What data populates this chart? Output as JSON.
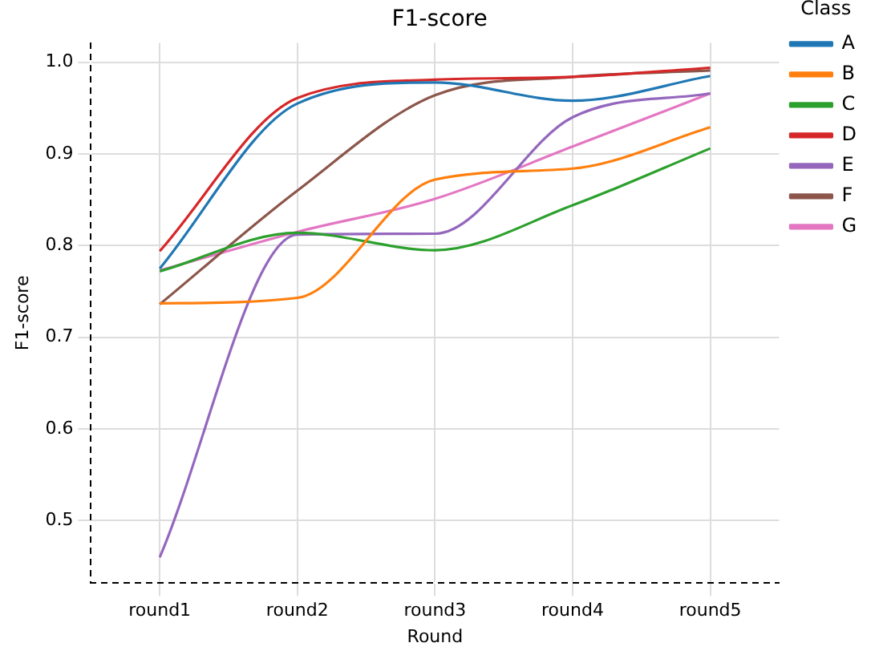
{
  "chart_data": {
    "type": "line",
    "title": "F1-score",
    "xlabel": "Round",
    "ylabel": "F1-score",
    "legend_title": "Class",
    "categories": [
      "round1",
      "round2",
      "round3",
      "round4",
      "round5"
    ],
    "ylim": [
      0.432,
      1.021
    ],
    "yticks": [
      {
        "value": 0.5,
        "label": "0.5"
      },
      {
        "value": 0.6,
        "label": "0.6"
      },
      {
        "value": 0.7,
        "label": "0.7"
      },
      {
        "value": 0.8,
        "label": "0.8"
      },
      {
        "value": 0.9,
        "label": "0.9"
      },
      {
        "value": 1.0,
        "label": "1.0"
      }
    ],
    "grid": true,
    "legend": "right",
    "line_style": "solid",
    "marker": "none",
    "series": [
      {
        "name": "A",
        "color": "#1f77b4",
        "values": [
          0.775,
          0.955,
          0.978,
          0.958,
          0.985
        ]
      },
      {
        "name": "B",
        "color": "#ff7f0e",
        "values": [
          0.737,
          0.743,
          0.872,
          0.884,
          0.929
        ]
      },
      {
        "name": "C",
        "color": "#2ca02c",
        "values": [
          0.772,
          0.814,
          0.795,
          0.844,
          0.906
        ]
      },
      {
        "name": "D",
        "color": "#d62728",
        "values": [
          0.794,
          0.961,
          0.981,
          0.984,
          0.994
        ]
      },
      {
        "name": "E",
        "color": "#9467bd",
        "values": [
          0.46,
          0.812,
          0.813,
          0.94,
          0.966
        ]
      },
      {
        "name": "F",
        "color": "#8c564b",
        "values": [
          0.736,
          0.86,
          0.964,
          0.984,
          0.991
        ]
      },
      {
        "name": "G",
        "color": "#e377c2",
        "values": [
          0.773,
          0.815,
          0.851,
          0.908,
          0.966
        ]
      }
    ]
  }
}
